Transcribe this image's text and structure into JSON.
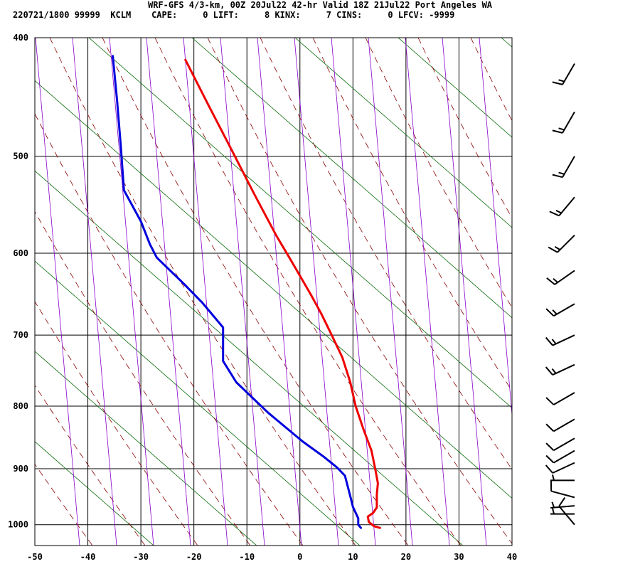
{
  "header": {
    "title": "WRF-GFS 4/3-km, 00Z 20Jul22 42-hr Valid 18Z 21Jul22 Port Angeles WA",
    "subtitle": "220721/1800 99999  KCLM    CAPE:     0 LIFT:     8 KINX:     7 CINS:     0 LFCV: -9999"
  },
  "chart_data": {
    "type": "line",
    "title": "WRF-GFS 4/3-km, 00Z 20Jul22 42-hr Valid 18Z 21Jul22 Port Angeles WA",
    "subtitle": "220721/1800 99999  KCLM    CAPE:     0 LIFT:     8 KINX:     7 CINS:     0 LFCV: -9999",
    "xlabel": "",
    "ylabel": "",
    "x_ticks": [
      -50,
      -40,
      -30,
      -20,
      -10,
      0,
      10,
      20,
      30,
      40
    ],
    "y_ticks": [
      400,
      500,
      600,
      700,
      800,
      900,
      1000
    ],
    "xlim": [
      -50,
      40
    ],
    "ylim": [
      1040,
      400
    ],
    "y_scale": "log",
    "grid": true,
    "series": [
      {
        "color": "#ee0000",
        "points": [
          [
            -21.6,
            417
          ],
          [
            -17.5,
            452
          ],
          [
            -13,
            493
          ],
          [
            -8.5,
            538
          ],
          [
            -4.5,
            580
          ],
          [
            -2,
            605
          ],
          [
            0,
            626
          ],
          [
            2,
            648
          ],
          [
            4,
            672
          ],
          [
            6,
            700
          ],
          [
            8,
            730
          ],
          [
            9.5,
            765
          ],
          [
            10.5,
            800
          ],
          [
            12,
            836
          ],
          [
            13.5,
            870
          ],
          [
            14.2,
            900
          ],
          [
            14.7,
            925
          ],
          [
            14.5,
            945
          ],
          [
            14.5,
            968
          ],
          [
            13.8,
            978
          ],
          [
            12.8,
            985
          ],
          [
            13,
            995
          ],
          [
            14,
            1003
          ],
          [
            15.1,
            1006
          ]
        ]
      },
      {
        "color": "#0000dd",
        "points": [
          [
            -35.3,
            414
          ],
          [
            -34.5,
            450
          ],
          [
            -33.8,
            490
          ],
          [
            -33.2,
            533
          ],
          [
            -30,
            565
          ],
          [
            -28.3,
            590
          ],
          [
            -27,
            605
          ],
          [
            -22,
            635
          ],
          [
            -18.5,
            658
          ],
          [
            -14.5,
            690
          ],
          [
            -14.5,
            710
          ],
          [
            -14.5,
            735
          ],
          [
            -12,
            765
          ],
          [
            -6,
            810
          ],
          [
            0.5,
            855
          ],
          [
            4.5,
            880
          ],
          [
            7,
            898
          ],
          [
            8.5,
            912
          ],
          [
            9.5,
            948
          ],
          [
            10,
            967
          ],
          [
            11,
            988
          ],
          [
            11,
            1000
          ],
          [
            11.5,
            1006
          ]
        ]
      }
    ],
    "background_lines": {
      "dry_adiabat_color": "#006600",
      "moist_adiabat_color": "#880000",
      "mixing_ratio_color": "#8800cc"
    },
    "wind_barbs": [
      {
        "pressure": 420,
        "direction_deg": 210,
        "speed_kt": 15
      },
      {
        "pressure": 460,
        "direction_deg": 210,
        "speed_kt": 15
      },
      {
        "pressure": 500,
        "direction_deg": 210,
        "speed_kt": 15
      },
      {
        "pressure": 540,
        "direction_deg": 220,
        "speed_kt": 15
      },
      {
        "pressure": 580,
        "direction_deg": 225,
        "speed_kt": 15
      },
      {
        "pressure": 620,
        "direction_deg": 235,
        "speed_kt": 15
      },
      {
        "pressure": 660,
        "direction_deg": 240,
        "speed_kt": 15
      },
      {
        "pressure": 700,
        "direction_deg": 245,
        "speed_kt": 15
      },
      {
        "pressure": 740,
        "direction_deg": 245,
        "speed_kt": 15
      },
      {
        "pressure": 780,
        "direction_deg": 240,
        "speed_kt": 10
      },
      {
        "pressure": 820,
        "direction_deg": 240,
        "speed_kt": 10
      },
      {
        "pressure": 850,
        "direction_deg": 240,
        "speed_kt": 10
      },
      {
        "pressure": 870,
        "direction_deg": 240,
        "speed_kt": 10
      },
      {
        "pressure": 890,
        "direction_deg": 245,
        "speed_kt": 10
      },
      {
        "pressure": 920,
        "direction_deg": 270,
        "speed_kt": 5
      },
      {
        "pressure": 950,
        "direction_deg": 285,
        "speed_kt": 10
      },
      {
        "pressure": 965,
        "direction_deg": 265,
        "speed_kt": 5
      },
      {
        "pressure": 980,
        "direction_deg": 270,
        "speed_kt": 5
      },
      {
        "pressure": 1000,
        "direction_deg": 320,
        "speed_kt": 10
      }
    ]
  }
}
